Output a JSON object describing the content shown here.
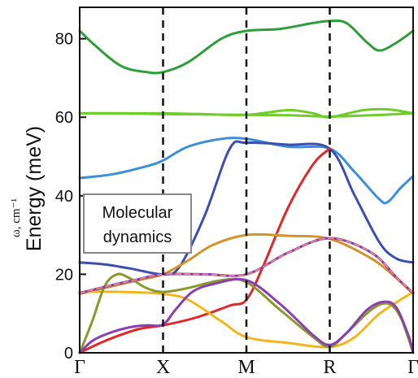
{
  "chart_data": {
    "type": "line",
    "ylabel": "Energy (meV)",
    "ylabel_secondary": "ω, cm⁻¹",
    "annotation": "Molecular dynamics",
    "ylim": [
      0,
      88
    ],
    "yticks": [
      0,
      20,
      40,
      60,
      80
    ],
    "xticks": [
      "Γ",
      "X",
      "M",
      "R",
      "Γ"
    ],
    "x_positions": [
      0,
      1,
      2,
      3,
      4
    ],
    "dashed_lines_at": [
      1,
      2,
      3
    ],
    "grid": false,
    "series": [
      {
        "color": "#2d9e3a",
        "x": [
          0,
          0.2,
          0.5,
          0.8,
          1,
          1.3,
          1.7,
          2,
          2.4,
          2.8,
          3,
          3.2,
          3.45,
          3.6,
          3.8,
          4
        ],
        "y": [
          82,
          78,
          73,
          71.5,
          71.5,
          74,
          80,
          82,
          82.5,
          84,
          84.5,
          84,
          79,
          77,
          79,
          82
        ]
      },
      {
        "color": "#6fcc2a",
        "x": [
          0,
          0.5,
          1,
          1.5,
          2,
          2.5,
          3,
          3.5,
          4
        ],
        "y": [
          61,
          61,
          60.8,
          60.7,
          60.6,
          60.5,
          60.2,
          60.5,
          61
        ]
      },
      {
        "color": "#6fcc2a",
        "x": [
          0,
          0.5,
          1,
          1.5,
          2,
          2.5,
          2.8,
          3,
          3.4,
          3.7,
          4
        ],
        "y": [
          61,
          61,
          61,
          60.8,
          60.6,
          61.8,
          61,
          60,
          61.8,
          62,
          61
        ]
      },
      {
        "color": "#3b8fd8",
        "x": [
          0,
          0.4,
          0.8,
          1,
          1.3,
          1.7,
          2,
          2.5,
          3,
          3.3,
          3.6,
          3.7,
          3.85,
          4
        ],
        "y": [
          44.5,
          45.5,
          47.5,
          49,
          52.5,
          54.5,
          54.5,
          52.5,
          52,
          46,
          39,
          38.5,
          42,
          45
        ]
      },
      {
        "color": "#3a4fb0",
        "x": [
          0,
          0.3,
          0.6,
          1,
          1.2,
          1.5,
          1.8,
          2,
          2.5,
          3,
          3.3,
          3.6,
          3.8,
          4
        ],
        "y": [
          23,
          22.5,
          21.5,
          20,
          22,
          35,
          52,
          53.5,
          53,
          52,
          40,
          28,
          24,
          23
        ]
      },
      {
        "color": "#e02828",
        "x": [
          0,
          0.3,
          0.7,
          1,
          1.4,
          1.8,
          2,
          2.2,
          2.5,
          2.8,
          3
        ],
        "y": [
          0,
          3,
          6,
          7,
          9,
          12,
          13.5,
          22,
          37,
          48,
          52
        ]
      },
      {
        "color": "#d4922a",
        "x": [
          0,
          0.4,
          0.7,
          1,
          1.3,
          1.6,
          2,
          2.5,
          3,
          3.5,
          3.8,
          4
        ],
        "y": [
          15,
          17,
          18.5,
          20,
          23.5,
          27.5,
          30,
          29.8,
          29,
          24,
          19,
          15
        ]
      },
      {
        "color": "#f2b51c",
        "x": [
          0,
          0.5,
          1,
          1.3,
          1.7,
          2,
          2.5,
          3,
          3.3,
          3.6,
          4
        ],
        "y": [
          15.5,
          15.5,
          15,
          13.5,
          8,
          4,
          2.5,
          1.5,
          4,
          10,
          15.5
        ]
      },
      {
        "color": "#8a9a2a",
        "x": [
          0,
          0.15,
          0.3,
          0.45,
          0.6,
          0.8,
          1,
          1.3,
          1.7,
          2,
          2.4,
          2.8,
          3,
          3.2,
          3.5,
          3.7,
          3.85,
          4
        ],
        "y": [
          0,
          8,
          17,
          20,
          19,
          16.5,
          15.5,
          16.5,
          18.5,
          18,
          11,
          4,
          1.5,
          5,
          11,
          12.5,
          9,
          0
        ]
      },
      {
        "color": "#8a3fb0",
        "x": [
          0,
          0.15,
          0.35,
          0.6,
          0.8,
          1,
          1.15,
          1.35,
          1.6,
          2,
          2.4,
          2.8,
          3,
          3.2,
          3.45,
          3.65,
          3.8,
          3.95,
          4
        ],
        "y": [
          0,
          3,
          5,
          6.5,
          7,
          7.2,
          11,
          15.5,
          17.5,
          18.5,
          12.5,
          4.5,
          2,
          5,
          11,
          13,
          11.5,
          4,
          0
        ]
      },
      {
        "color": "#7b3fb5",
        "x": [
          0,
          0.4,
          0.7,
          1,
          1.5,
          2,
          2.5,
          3,
          3.5,
          3.8,
          4
        ],
        "y": [
          15.2,
          17.3,
          18.7,
          20,
          20,
          20,
          25.5,
          29.2,
          25.5,
          19.2,
          15.2
        ]
      },
      {
        "color": "#f08080",
        "dashed": true,
        "x": [
          0,
          0.4,
          0.7,
          1,
          1.5,
          2,
          2.5,
          3,
          3.5,
          3.8,
          4
        ],
        "y": [
          15.2,
          17.3,
          18.7,
          20,
          20,
          20,
          25.5,
          29.2,
          25.5,
          19.2,
          15.2
        ]
      }
    ]
  }
}
